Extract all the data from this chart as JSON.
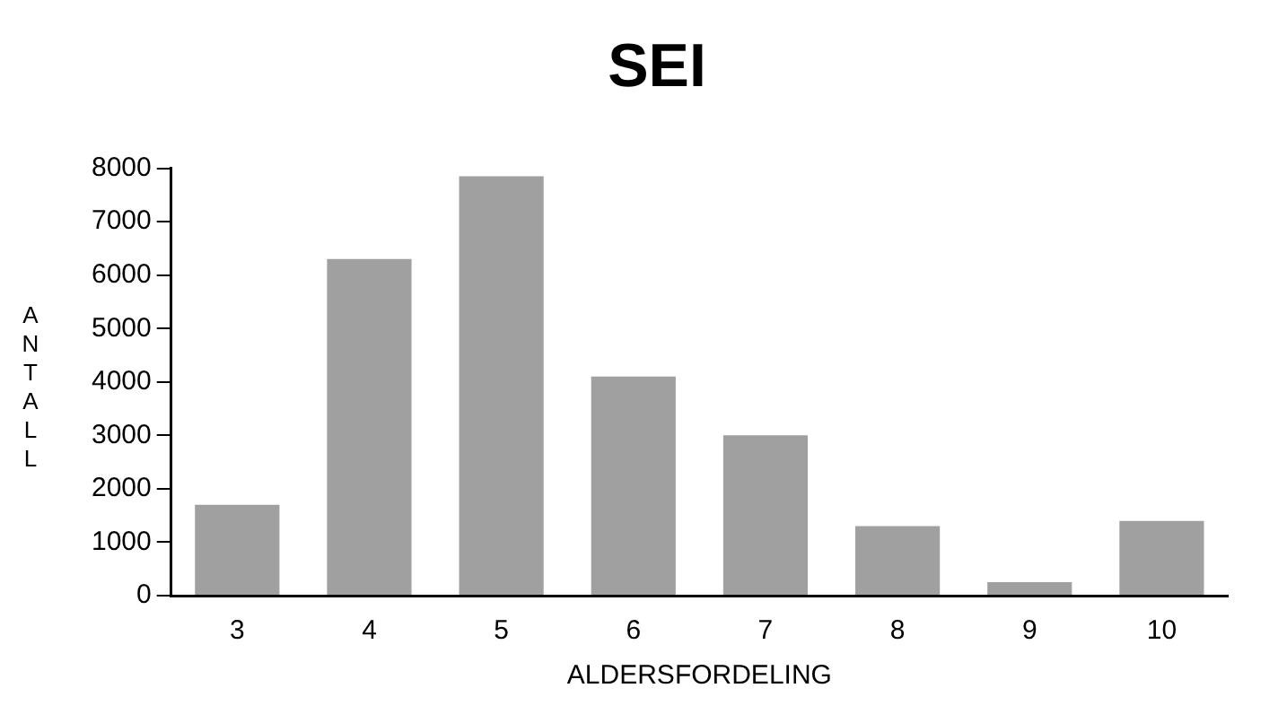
{
  "chart_data": {
    "type": "bar",
    "title": "SEI",
    "xlabel": "ALDERSFORDELING",
    "ylabel": "ANTALL",
    "categories": [
      "3",
      "4",
      "5",
      "6",
      "7",
      "8",
      "9",
      "10"
    ],
    "values": [
      1700,
      6300,
      7850,
      4100,
      3000,
      1300,
      250,
      1400
    ],
    "color": "#a0a0a0",
    "ylim": [
      0,
      8000
    ],
    "yticks": [
      0,
      1000,
      2000,
      3000,
      4000,
      5000,
      6000,
      7000,
      8000
    ],
    "grid": false,
    "legend": false
  }
}
